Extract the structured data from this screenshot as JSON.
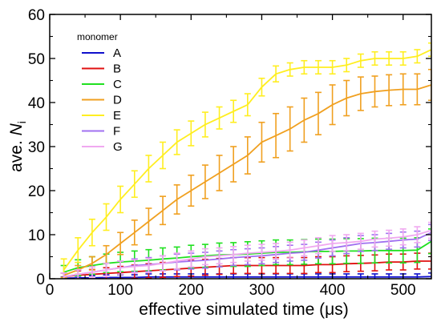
{
  "chart_data": {
    "type": "line",
    "title": "",
    "xlabel": "effective simulated time (μs)",
    "ylabel_prefix": "ave. ",
    "ylabel_symbol": "N",
    "ylabel_subscript": "i",
    "xlim": [
      0,
      540
    ],
    "ylim": [
      0,
      60
    ],
    "xticks": [
      0,
      100,
      200,
      300,
      400,
      500
    ],
    "yticks": [
      0,
      10,
      20,
      30,
      40,
      50,
      60
    ],
    "grid": false,
    "legend": {
      "title": "monomer",
      "placement": "top-left"
    },
    "x": [
      20,
      40,
      60,
      80,
      100,
      120,
      140,
      160,
      180,
      200,
      220,
      240,
      260,
      280,
      300,
      320,
      340,
      360,
      380,
      400,
      420,
      440,
      460,
      480,
      500,
      520,
      540
    ],
    "series": [
      {
        "name": "A",
        "color": "#1010cc",
        "values": [
          0.1,
          0.2,
          0.2,
          0.3,
          0.3,
          0.3,
          0.4,
          0.4,
          0.4,
          0.4,
          0.4,
          0.4,
          0.4,
          0.4,
          0.4,
          0.4,
          0.4,
          0.4,
          0.4,
          0.4,
          0.4,
          0.4,
          0.4,
          0.4,
          0.4,
          0.4,
          0.5
        ],
        "errors": [
          0.3,
          0.4,
          0.5,
          0.6,
          0.6,
          0.6,
          0.7,
          0.7,
          0.7,
          0.7,
          0.7,
          0.7,
          0.7,
          0.7,
          0.7,
          0.7,
          0.7,
          0.7,
          0.7,
          0.7,
          0.7,
          0.7,
          0.7,
          0.7,
          0.7,
          0.7,
          0.8
        ]
      },
      {
        "name": "B",
        "color": "#e01010",
        "values": [
          0.5,
          0.8,
          1.0,
          1.2,
          1.4,
          1.6,
          1.8,
          2.0,
          2.2,
          2.4,
          2.6,
          2.8,
          3.0,
          3.0,
          3.0,
          3.0,
          3.0,
          3.0,
          3.2,
          3.2,
          3.4,
          3.5,
          3.6,
          3.8,
          3.8,
          4.0,
          4.0
        ],
        "errors": [
          0.8,
          1.0,
          1.1,
          1.3,
          1.4,
          1.5,
          1.6,
          1.7,
          1.7,
          1.8,
          1.8,
          1.8,
          1.8,
          1.8,
          1.8,
          1.8,
          1.8,
          1.8,
          1.8,
          1.8,
          1.8,
          1.8,
          1.8,
          1.8,
          1.8,
          1.8,
          1.8
        ]
      },
      {
        "name": "C",
        "color": "#20e020",
        "values": [
          1.5,
          2.5,
          3.0,
          3.5,
          3.8,
          4.0,
          4.2,
          4.5,
          4.7,
          5.0,
          5.2,
          5.4,
          5.5,
          5.6,
          5.8,
          6.0,
          6.0,
          6.1,
          6.2,
          6.2,
          6.3,
          6.3,
          6.4,
          6.4,
          6.4,
          6.5,
          8.5
        ],
        "errors": [
          1.5,
          1.8,
          2.0,
          2.1,
          2.2,
          2.3,
          2.4,
          2.5,
          2.5,
          2.6,
          2.6,
          2.7,
          2.7,
          2.8,
          2.8,
          2.8,
          2.8,
          2.8,
          2.8,
          2.8,
          2.8,
          2.8,
          2.8,
          2.8,
          2.8,
          2.8,
          2.8
        ]
      },
      {
        "name": "D",
        "color": "#f0a020",
        "values": [
          0.8,
          2.0,
          3.5,
          5.5,
          8.0,
          10.5,
          13.0,
          15.5,
          18.0,
          20.0,
          22.0,
          24.0,
          26.0,
          28.0,
          31.0,
          32.5,
          34.0,
          36.0,
          37.5,
          39.5,
          41.0,
          42.0,
          42.5,
          42.8,
          43.0,
          43.0,
          44.0
        ],
        "errors": [
          0.5,
          1.0,
          1.5,
          2.0,
          2.5,
          2.8,
          3.0,
          3.2,
          3.3,
          3.5,
          3.8,
          4.0,
          4.0,
          4.2,
          4.5,
          5.0,
          5.0,
          5.0,
          4.8,
          4.5,
          4.0,
          3.8,
          3.5,
          3.5,
          3.5,
          3.5,
          3.5
        ]
      },
      {
        "name": "E",
        "color": "#ffee20",
        "values": [
          2.0,
          6.5,
          10.5,
          14.0,
          18.0,
          21.5,
          25.0,
          28.0,
          31.0,
          33.0,
          35.0,
          36.5,
          38.0,
          39.5,
          43.5,
          46.5,
          47.5,
          48.0,
          48.0,
          48.0,
          48.5,
          49.5,
          50.0,
          50.0,
          50.0,
          50.5,
          52.0
        ],
        "errors": [
          2.5,
          2.8,
          3.0,
          3.0,
          3.0,
          3.0,
          3.0,
          3.0,
          2.8,
          2.8,
          2.8,
          2.5,
          2.5,
          2.5,
          2.0,
          1.8,
          1.5,
          1.5,
          1.5,
          1.5,
          1.5,
          1.5,
          1.5,
          1.5,
          1.5,
          1.5,
          1.5
        ]
      },
      {
        "name": "F",
        "color": "#a070f0",
        "values": [
          0.5,
          1.0,
          1.5,
          2.0,
          2.5,
          3.0,
          3.2,
          3.5,
          3.8,
          4.0,
          4.2,
          4.5,
          4.8,
          5.0,
          5.2,
          5.5,
          5.8,
          6.0,
          6.5,
          7.0,
          7.5,
          8.0,
          8.2,
          8.5,
          8.8,
          9.0,
          10.5
        ],
        "errors": [
          0.8,
          1.0,
          1.2,
          1.5,
          1.5,
          1.5,
          1.6,
          1.7,
          1.8,
          1.8,
          1.8,
          1.8,
          1.8,
          1.8,
          1.8,
          1.8,
          1.8,
          1.8,
          1.8,
          1.8,
          1.8,
          1.8,
          1.8,
          1.8,
          1.8,
          1.8,
          1.8
        ]
      },
      {
        "name": "G",
        "color": "#f0a8f0",
        "values": [
          0.5,
          1.0,
          1.5,
          2.0,
          2.5,
          2.8,
          3.0,
          3.5,
          4.0,
          4.5,
          5.0,
          5.2,
          5.5,
          5.8,
          6.0,
          6.2,
          6.5,
          7.0,
          7.5,
          8.0,
          8.2,
          8.5,
          9.0,
          9.2,
          9.5,
          10.0,
          11.0
        ],
        "errors": [
          0.8,
          1.0,
          1.2,
          1.5,
          1.5,
          1.5,
          1.6,
          1.7,
          1.8,
          1.8,
          1.8,
          1.8,
          1.8,
          1.8,
          1.8,
          1.8,
          1.8,
          1.8,
          1.8,
          1.8,
          1.8,
          1.8,
          1.8,
          1.8,
          1.8,
          1.8,
          1.8
        ]
      }
    ]
  }
}
